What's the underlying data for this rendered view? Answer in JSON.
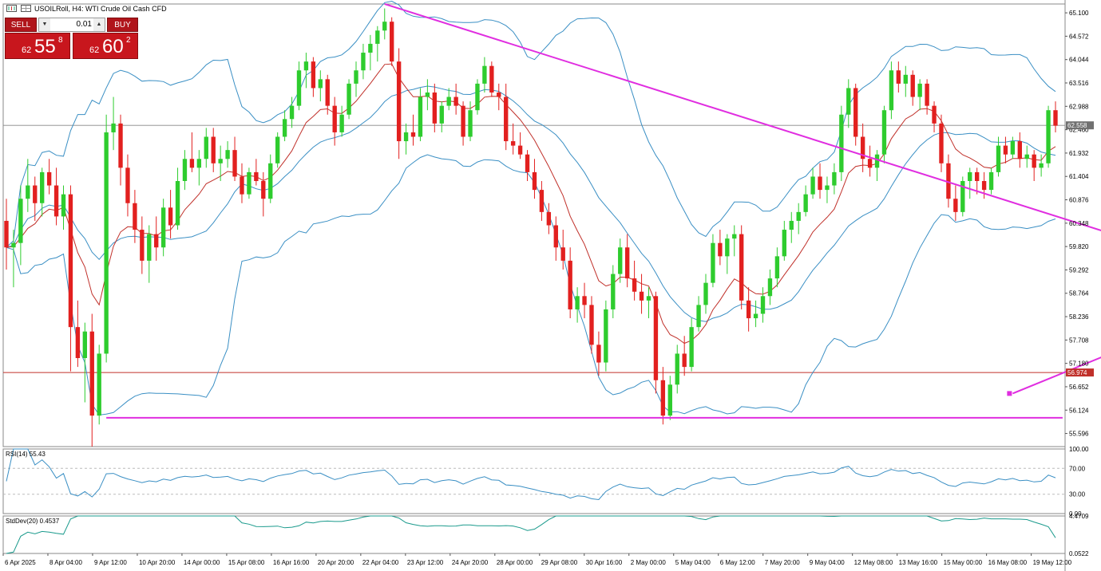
{
  "header": {
    "title": "USOILRoll, H4:  WTI Crude Oil Cash CFD"
  },
  "trade_panel": {
    "sell_label": "SELL",
    "buy_label": "BUY",
    "lot": "0.01",
    "sell_price": {
      "prefix": "62",
      "big": "55",
      "sup": "8"
    },
    "buy_price": {
      "prefix": "62",
      "big": "60",
      "sup": "2"
    }
  },
  "price_axis": {
    "labels": [
      "65.100",
      "64.572",
      "64.044",
      "63.516",
      "62.988",
      "62.460",
      "61.932",
      "61.404",
      "60.876",
      "60.348",
      "59.820",
      "59.292",
      "58.764",
      "58.236",
      "57.708",
      "57.180",
      "56.652",
      "56.124",
      "55.596"
    ],
    "current_price_tag": "62.558",
    "level_tag": "56.974"
  },
  "rsi_panel": {
    "title": "RSI(14) 55.43",
    "scale": [
      "100.00",
      "70.00",
      "30.00",
      "0.00"
    ]
  },
  "stddev_panel": {
    "title": "StdDev(20) 0.4537",
    "scale": [
      "4.4709",
      "0.0522"
    ]
  },
  "time_axis": {
    "labels": [
      "6 Apr 2025",
      "8 Apr 04:00",
      "9 Apr 12:00",
      "10 Apr 20:00",
      "14 Apr 00:00",
      "15 Apr 08:00",
      "16 Apr 16:00",
      "20 Apr 20:00",
      "22 Apr 04:00",
      "23 Apr 12:00",
      "24 Apr 20:00",
      "28 Apr 00:00",
      "29 Apr 08:00",
      "30 Apr 16:00",
      "2 May 00:00",
      "5 May 04:00",
      "6 May 12:00",
      "7 May 20:00",
      "9 May 04:00",
      "12 May 08:00",
      "13 May 16:00",
      "15 May 00:00",
      "16 May 08:00",
      "19 May 12:00"
    ]
  },
  "colors": {
    "bull": "#2ecc2e",
    "bear": "#e2201f",
    "bollinger": "#3a8fc4",
    "ema": "#c0302a",
    "trendline": "#e02ee0",
    "level_line": "#c0302a",
    "grid_line": "#888888"
  },
  "chart_data": {
    "type": "candlestick",
    "timeframe": "H4",
    "y_range": [
      55.3,
      65.3
    ],
    "support_level": 56.974,
    "current_price": 62.558,
    "ohlc": [
      [
        60.4,
        60.9,
        59.3,
        59.8
      ],
      [
        59.8,
        60.2,
        58.9,
        59.9
      ],
      [
        59.9,
        61.2,
        59.4,
        60.9
      ],
      [
        60.9,
        61.8,
        60.6,
        61.2
      ],
      [
        61.2,
        61.4,
        60.4,
        60.8
      ],
      [
        60.8,
        61.6,
        60.5,
        61.5
      ],
      [
        61.5,
        61.8,
        61.0,
        61.2
      ],
      [
        61.2,
        61.6,
        60.3,
        60.5
      ],
      [
        60.5,
        61.2,
        60.2,
        61.0
      ],
      [
        61.0,
        61.2,
        57.0,
        58.0
      ],
      [
        58.0,
        58.6,
        57.1,
        57.3
      ],
      [
        57.3,
        58.1,
        56.3,
        57.9
      ],
      [
        57.9,
        58.3,
        55.3,
        56.0
      ],
      [
        56.0,
        57.6,
        55.8,
        57.4
      ],
      [
        57.4,
        62.8,
        57.2,
        62.4
      ],
      [
        62.4,
        63.2,
        62.0,
        62.6
      ],
      [
        62.6,
        62.8,
        61.2,
        61.6
      ],
      [
        61.6,
        61.9,
        60.5,
        60.8
      ],
      [
        60.8,
        61.1,
        59.9,
        60.2
      ],
      [
        60.2,
        60.5,
        59.2,
        59.5
      ],
      [
        59.5,
        60.3,
        59.0,
        60.1
      ],
      [
        60.1,
        60.5,
        59.5,
        59.8
      ],
      [
        59.8,
        60.9,
        59.6,
        60.7
      ],
      [
        60.7,
        61.1,
        60.0,
        60.3
      ],
      [
        60.3,
        61.6,
        60.2,
        61.3
      ],
      [
        61.3,
        62.0,
        61.1,
        61.8
      ],
      [
        61.8,
        62.4,
        61.5,
        61.6
      ],
      [
        61.6,
        62.0,
        61.2,
        61.8
      ],
      [
        61.8,
        62.5,
        61.6,
        62.3
      ],
      [
        62.3,
        62.5,
        61.5,
        61.7
      ],
      [
        61.7,
        62.1,
        61.3,
        61.8
      ],
      [
        61.8,
        62.2,
        61.6,
        62.0
      ],
      [
        62.0,
        62.3,
        61.3,
        61.4
      ],
      [
        61.4,
        61.7,
        60.8,
        61.0
      ],
      [
        61.0,
        61.6,
        60.9,
        61.5
      ],
      [
        61.5,
        61.8,
        61.2,
        61.3
      ],
      [
        61.3,
        61.5,
        60.5,
        60.9
      ],
      [
        60.9,
        61.9,
        60.8,
        61.7
      ],
      [
        61.7,
        62.4,
        61.6,
        62.3
      ],
      [
        62.3,
        62.9,
        62.2,
        62.7
      ],
      [
        62.7,
        63.2,
        62.5,
        63.0
      ],
      [
        63.0,
        64.0,
        62.9,
        63.8
      ],
      [
        63.8,
        64.2,
        63.4,
        64.0
      ],
      [
        64.0,
        64.1,
        63.2,
        63.4
      ],
      [
        63.4,
        63.8,
        63.1,
        63.6
      ],
      [
        63.6,
        63.7,
        62.8,
        63.0
      ],
      [
        63.0,
        63.2,
        62.1,
        62.4
      ],
      [
        62.4,
        63.0,
        62.3,
        62.8
      ],
      [
        62.8,
        63.6,
        62.7,
        63.5
      ],
      [
        63.5,
        64.0,
        63.2,
        63.8
      ],
      [
        63.8,
        64.4,
        63.6,
        64.2
      ],
      [
        64.2,
        64.6,
        63.8,
        64.4
      ],
      [
        64.4,
        64.8,
        64.0,
        64.7
      ],
      [
        64.7,
        65.2,
        64.5,
        64.9
      ],
      [
        64.9,
        65.0,
        63.9,
        64.0
      ],
      [
        64.0,
        64.3,
        61.8,
        62.2
      ],
      [
        62.2,
        62.6,
        61.9,
        62.4
      ],
      [
        62.4,
        62.8,
        62.1,
        62.3
      ],
      [
        62.3,
        63.4,
        62.2,
        63.2
      ],
      [
        63.2,
        63.6,
        62.9,
        63.3
      ],
      [
        63.3,
        63.5,
        62.4,
        62.6
      ],
      [
        62.6,
        63.1,
        62.4,
        63.0
      ],
      [
        63.0,
        63.4,
        62.9,
        63.2
      ],
      [
        63.2,
        63.5,
        62.8,
        63.0
      ],
      [
        63.0,
        63.1,
        62.1,
        62.3
      ],
      [
        62.3,
        63.1,
        62.2,
        62.9
      ],
      [
        62.9,
        63.6,
        62.8,
        63.5
      ],
      [
        63.5,
        64.1,
        63.3,
        63.9
      ],
      [
        63.9,
        64.0,
        63.2,
        63.3
      ],
      [
        63.3,
        63.5,
        62.9,
        63.2
      ],
      [
        63.2,
        63.5,
        62.0,
        62.2
      ],
      [
        62.2,
        62.6,
        61.9,
        62.1
      ],
      [
        62.1,
        62.4,
        61.8,
        61.9
      ],
      [
        61.9,
        62.0,
        61.3,
        61.5
      ],
      [
        61.5,
        61.8,
        60.9,
        61.1
      ],
      [
        61.1,
        61.3,
        60.4,
        60.6
      ],
      [
        60.6,
        60.8,
        60.1,
        60.3
      ],
      [
        60.3,
        60.5,
        59.5,
        59.8
      ],
      [
        59.8,
        60.2,
        59.3,
        59.5
      ],
      [
        59.5,
        59.8,
        58.2,
        58.4
      ],
      [
        58.4,
        58.9,
        58.1,
        58.7
      ],
      [
        58.7,
        59.0,
        58.2,
        58.5
      ],
      [
        58.5,
        58.7,
        57.4,
        57.6
      ],
      [
        57.6,
        57.9,
        56.9,
        57.2
      ],
      [
        57.2,
        58.6,
        57.0,
        58.4
      ],
      [
        58.4,
        59.4,
        58.2,
        59.2
      ],
      [
        59.2,
        60.0,
        59.0,
        59.8
      ],
      [
        59.8,
        60.1,
        58.9,
        59.1
      ],
      [
        59.1,
        59.5,
        58.6,
        58.8
      ],
      [
        58.8,
        59.2,
        58.3,
        58.6
      ],
      [
        58.6,
        58.9,
        58.2,
        58.7
      ],
      [
        58.7,
        58.8,
        56.5,
        56.8
      ],
      [
        56.8,
        57.1,
        55.8,
        56.0
      ],
      [
        56.0,
        56.9,
        55.9,
        56.7
      ],
      [
        56.7,
        57.6,
        56.5,
        57.4
      ],
      [
        57.4,
        57.8,
        56.9,
        57.1
      ],
      [
        57.1,
        58.2,
        57.0,
        58.0
      ],
      [
        58.0,
        58.7,
        57.9,
        58.5
      ],
      [
        58.5,
        59.2,
        58.3,
        59.0
      ],
      [
        59.0,
        60.1,
        58.9,
        59.9
      ],
      [
        59.9,
        60.2,
        59.4,
        59.6
      ],
      [
        59.6,
        60.1,
        59.2,
        60.0
      ],
      [
        60.0,
        60.3,
        59.6,
        60.1
      ],
      [
        60.1,
        60.3,
        58.4,
        58.6
      ],
      [
        58.6,
        58.9,
        57.9,
        58.2
      ],
      [
        58.2,
        58.6,
        58.0,
        58.3
      ],
      [
        58.3,
        58.9,
        58.1,
        58.7
      ],
      [
        58.7,
        59.3,
        58.5,
        59.1
      ],
      [
        59.1,
        59.8,
        58.9,
        59.6
      ],
      [
        59.6,
        60.4,
        59.5,
        60.2
      ],
      [
        60.2,
        60.6,
        59.9,
        60.4
      ],
      [
        60.4,
        60.8,
        60.1,
        60.6
      ],
      [
        60.6,
        61.2,
        60.5,
        61.0
      ],
      [
        61.0,
        61.6,
        60.9,
        61.4
      ],
      [
        61.4,
        61.7,
        60.9,
        61.1
      ],
      [
        61.1,
        61.4,
        60.8,
        61.2
      ],
      [
        61.2,
        61.7,
        61.0,
        61.5
      ],
      [
        61.5,
        63.0,
        61.3,
        62.8
      ],
      [
        62.8,
        63.6,
        62.5,
        63.4
      ],
      [
        63.4,
        63.5,
        62.1,
        62.3
      ],
      [
        62.3,
        62.6,
        61.5,
        61.8
      ],
      [
        61.8,
        62.1,
        61.4,
        61.6
      ],
      [
        61.6,
        62.0,
        61.3,
        61.9
      ],
      [
        61.9,
        63.0,
        61.7,
        62.9
      ],
      [
        62.9,
        64.0,
        62.7,
        63.8
      ],
      [
        63.8,
        64.0,
        63.3,
        63.5
      ],
      [
        63.5,
        63.9,
        63.2,
        63.7
      ],
      [
        63.7,
        63.8,
        63.0,
        63.2
      ],
      [
        63.2,
        63.6,
        62.9,
        63.5
      ],
      [
        63.5,
        63.6,
        62.8,
        63.0
      ],
      [
        63.0,
        63.1,
        62.4,
        62.6
      ],
      [
        62.6,
        62.8,
        61.5,
        61.7
      ],
      [
        61.7,
        61.9,
        60.7,
        60.9
      ],
      [
        60.9,
        61.2,
        60.4,
        60.6
      ],
      [
        60.6,
        61.4,
        60.5,
        61.3
      ],
      [
        61.3,
        61.6,
        60.9,
        61.5
      ],
      [
        61.5,
        61.6,
        61.0,
        61.3
      ],
      [
        61.3,
        61.5,
        60.9,
        61.1
      ],
      [
        61.1,
        61.6,
        61.0,
        61.5
      ],
      [
        61.5,
        62.3,
        61.4,
        62.1
      ],
      [
        62.1,
        62.3,
        61.7,
        61.9
      ],
      [
        61.9,
        62.3,
        61.8,
        62.2
      ],
      [
        62.2,
        62.4,
        61.6,
        61.8
      ],
      [
        61.8,
        62.1,
        61.6,
        61.9
      ],
      [
        61.9,
        62.0,
        61.3,
        61.6
      ],
      [
        61.6,
        61.9,
        61.4,
        61.7
      ],
      [
        61.7,
        63.0,
        61.6,
        62.9
      ],
      [
        62.9,
        63.1,
        62.4,
        62.55
      ]
    ],
    "trendlines": [
      {
        "from": [
          53,
          65.3
        ],
        "to": [
          157,
          60.0
        ]
      },
      {
        "from": [
          14,
          55.95
        ],
        "to": [
          148,
          55.95
        ]
      },
      {
        "from": [
          141,
          56.5
        ],
        "to": [
          226,
          62.1
        ]
      }
    ],
    "rsi": {
      "period": 14,
      "value": 55.43,
      "levels": [
        70,
        30
      ],
      "range": [
        0,
        100
      ]
    },
    "stddev": {
      "period": 20,
      "value": 0.4537,
      "range": [
        0.0522,
        4.4709
      ]
    }
  }
}
